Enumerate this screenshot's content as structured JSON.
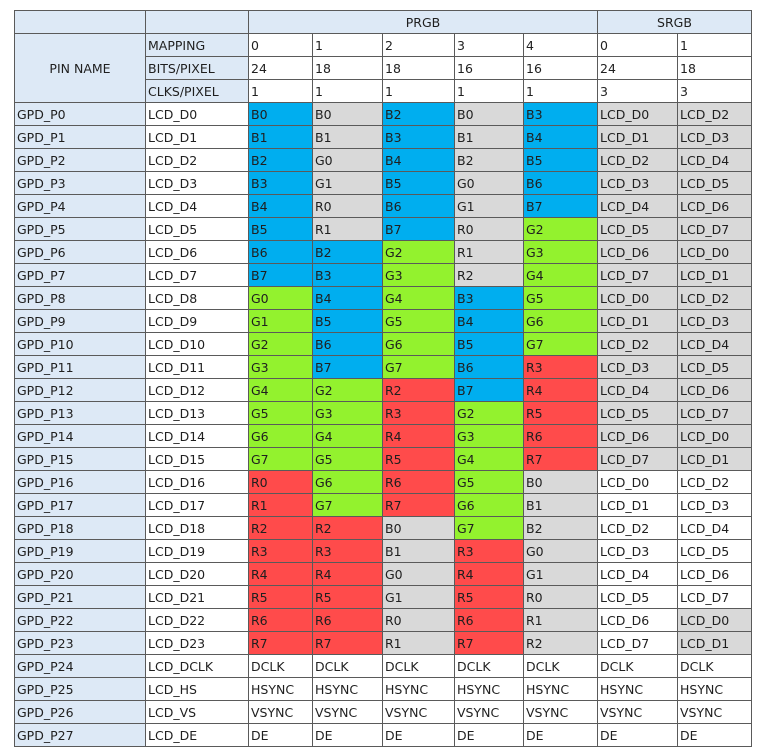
{
  "header": {
    "prgb": "PRGB",
    "srgb": "SRGB",
    "pin_name": "PIN NAME",
    "rows": [
      {
        "label": "MAPPING",
        "values": [
          "0",
          "1",
          "2",
          "3",
          "4",
          "0",
          "1"
        ]
      },
      {
        "label": "BITS/PIXEL",
        "values": [
          "24",
          "18",
          "18",
          "16",
          "16",
          "24",
          "18"
        ]
      },
      {
        "label": "CLKS/PIXEL",
        "values": [
          "1",
          "1",
          "1",
          "1",
          "1",
          "3",
          "3"
        ]
      }
    ]
  },
  "colors": {
    "header_bg": "#dde9f6",
    "blue": "#00aeef",
    "green": "#93f22e",
    "red": "#ff4b4b",
    "gray": "#d9d9d9",
    "white": "#ffffff",
    "border": "#5a5a5a"
  },
  "rows": [
    {
      "pin": "GPD_P0",
      "lcd": "LCD_D0",
      "cells": [
        "B0",
        "B0",
        "B2",
        "B0",
        "B3",
        "LCD_D0",
        "LCD_D2"
      ],
      "colors": [
        "B",
        "gray",
        "B",
        "gray",
        "B",
        "gray",
        "gray"
      ]
    },
    {
      "pin": "GPD_P1",
      "lcd": "LCD_D1",
      "cells": [
        "B1",
        "B1",
        "B3",
        "B1",
        "B4",
        "LCD_D1",
        "LCD_D3"
      ],
      "colors": [
        "B",
        "gray",
        "B",
        "gray",
        "B",
        "gray",
        "gray"
      ]
    },
    {
      "pin": "GPD_P2",
      "lcd": "LCD_D2",
      "cells": [
        "B2",
        "G0",
        "B4",
        "B2",
        "B5",
        "LCD_D2",
        "LCD_D4"
      ],
      "colors": [
        "B",
        "gray",
        "B",
        "gray",
        "B",
        "gray",
        "gray"
      ]
    },
    {
      "pin": "GPD_P3",
      "lcd": "LCD_D3",
      "cells": [
        "B3",
        "G1",
        "B5",
        "G0",
        "B6",
        "LCD_D3",
        "LCD_D5"
      ],
      "colors": [
        "B",
        "gray",
        "B",
        "gray",
        "B",
        "gray",
        "gray"
      ]
    },
    {
      "pin": "GPD_P4",
      "lcd": "LCD_D4",
      "cells": [
        "B4",
        "R0",
        "B6",
        "G1",
        "B7",
        "LCD_D4",
        "LCD_D6"
      ],
      "colors": [
        "B",
        "gray",
        "B",
        "gray",
        "B",
        "gray",
        "gray"
      ]
    },
    {
      "pin": "GPD_P5",
      "lcd": "LCD_D5",
      "cells": [
        "B5",
        "R1",
        "B7",
        "R0",
        "G2",
        "LCD_D5",
        "LCD_D7"
      ],
      "colors": [
        "B",
        "gray",
        "B",
        "gray",
        "G",
        "gray",
        "gray"
      ]
    },
    {
      "pin": "GPD_P6",
      "lcd": "LCD_D6",
      "cells": [
        "B6",
        "B2",
        "G2",
        "R1",
        "G3",
        "LCD_D6",
        "LCD_D0"
      ],
      "colors": [
        "B",
        "B",
        "G",
        "gray",
        "G",
        "gray",
        "gray"
      ]
    },
    {
      "pin": "GPD_P7",
      "lcd": "LCD_D7",
      "cells": [
        "B7",
        "B3",
        "G3",
        "R2",
        "G4",
        "LCD_D7",
        "LCD_D1"
      ],
      "colors": [
        "B",
        "B",
        "G",
        "gray",
        "G",
        "gray",
        "gray"
      ]
    },
    {
      "pin": "GPD_P8",
      "lcd": "LCD_D8",
      "cells": [
        "G0",
        "B4",
        "G4",
        "B3",
        "G5",
        "LCD_D0",
        "LCD_D2"
      ],
      "colors": [
        "G",
        "B",
        "G",
        "B",
        "G",
        "gray",
        "gray"
      ]
    },
    {
      "pin": "GPD_P9",
      "lcd": "LCD_D9",
      "cells": [
        "G1",
        "B5",
        "G5",
        "B4",
        "G6",
        "LCD_D1",
        "LCD_D3"
      ],
      "colors": [
        "G",
        "B",
        "G",
        "B",
        "G",
        "gray",
        "gray"
      ]
    },
    {
      "pin": "GPD_P10",
      "lcd": "LCD_D10",
      "cells": [
        "G2",
        "B6",
        "G6",
        "B5",
        "G7",
        "LCD_D2",
        "LCD_D4"
      ],
      "colors": [
        "G",
        "B",
        "G",
        "B",
        "G",
        "gray",
        "gray"
      ]
    },
    {
      "pin": "GPD_P11",
      "lcd": "LCD_D11",
      "cells": [
        "G3",
        "B7",
        "G7",
        "B6",
        "R3",
        "LCD_D3",
        "LCD_D5"
      ],
      "colors": [
        "G",
        "B",
        "G",
        "B",
        "R",
        "gray",
        "gray"
      ]
    },
    {
      "pin": "GPD_P12",
      "lcd": "LCD_D12",
      "cells": [
        "G4",
        "G2",
        "R2",
        "B7",
        "R4",
        "LCD_D4",
        "LCD_D6"
      ],
      "colors": [
        "G",
        "G",
        "R",
        "B",
        "R",
        "gray",
        "gray"
      ]
    },
    {
      "pin": "GPD_P13",
      "lcd": "LCD_D13",
      "cells": [
        "G5",
        "G3",
        "R3",
        "G2",
        "R5",
        "LCD_D5",
        "LCD_D7"
      ],
      "colors": [
        "G",
        "G",
        "R",
        "G",
        "R",
        "gray",
        "gray"
      ]
    },
    {
      "pin": "GPD_P14",
      "lcd": "LCD_D14",
      "cells": [
        "G6",
        "G4",
        "R4",
        "G3",
        "R6",
        "LCD_D6",
        "LCD_D0"
      ],
      "colors": [
        "G",
        "G",
        "R",
        "G",
        "R",
        "gray",
        "gray"
      ]
    },
    {
      "pin": "GPD_P15",
      "lcd": "LCD_D15",
      "cells": [
        "G7",
        "G5",
        "R5",
        "G4",
        "R7",
        "LCD_D7",
        "LCD_D1"
      ],
      "colors": [
        "G",
        "G",
        "R",
        "G",
        "R",
        "gray",
        "gray"
      ]
    },
    {
      "pin": "GPD_P16",
      "lcd": "LCD_D16",
      "cells": [
        "R0",
        "G6",
        "R6",
        "G5",
        "B0",
        "LCD_D0",
        "LCD_D2"
      ],
      "colors": [
        "R",
        "G",
        "R",
        "G",
        "gray",
        "white",
        "white"
      ]
    },
    {
      "pin": "GPD_P17",
      "lcd": "LCD_D17",
      "cells": [
        "R1",
        "G7",
        "R7",
        "G6",
        "B1",
        "LCD_D1",
        "LCD_D3"
      ],
      "colors": [
        "R",
        "G",
        "R",
        "G",
        "gray",
        "white",
        "white"
      ]
    },
    {
      "pin": "GPD_P18",
      "lcd": "LCD_D18",
      "cells": [
        "R2",
        "R2",
        "B0",
        "G7",
        "B2",
        "LCD_D2",
        "LCD_D4"
      ],
      "colors": [
        "R",
        "R",
        "gray",
        "G",
        "gray",
        "white",
        "white"
      ]
    },
    {
      "pin": "GPD_P19",
      "lcd": "LCD_D19",
      "cells": [
        "R3",
        "R3",
        "B1",
        "R3",
        "G0",
        "LCD_D3",
        "LCD_D5"
      ],
      "colors": [
        "R",
        "R",
        "gray",
        "R",
        "gray",
        "white",
        "white"
      ]
    },
    {
      "pin": "GPD_P20",
      "lcd": "LCD_D20",
      "cells": [
        "R4",
        "R4",
        "G0",
        "R4",
        "G1",
        "LCD_D4",
        "LCD_D6"
      ],
      "colors": [
        "R",
        "R",
        "gray",
        "R",
        "gray",
        "white",
        "white"
      ]
    },
    {
      "pin": "GPD_P21",
      "lcd": "LCD_D21",
      "cells": [
        "R5",
        "R5",
        "G1",
        "R5",
        "R0",
        "LCD_D5",
        "LCD_D7"
      ],
      "colors": [
        "R",
        "R",
        "gray",
        "R",
        "gray",
        "white",
        "white"
      ]
    },
    {
      "pin": "GPD_P22",
      "lcd": "LCD_D22",
      "cells": [
        "R6",
        "R6",
        "R0",
        "R6",
        "R1",
        "LCD_D6",
        "LCD_D0"
      ],
      "colors": [
        "R",
        "R",
        "gray",
        "R",
        "gray",
        "white",
        "gray"
      ]
    },
    {
      "pin": "GPD_P23",
      "lcd": "LCD_D23",
      "cells": [
        "R7",
        "R7",
        "R1",
        "R7",
        "R2",
        "LCD_D7",
        "LCD_D1"
      ],
      "colors": [
        "R",
        "R",
        "gray",
        "R",
        "gray",
        "white",
        "gray"
      ]
    },
    {
      "pin": "GPD_P24",
      "lcd": "LCD_DCLK",
      "cells": [
        "DCLK",
        "DCLK",
        "DCLK",
        "DCLK",
        "DCLK",
        "DCLK",
        "DCLK"
      ],
      "colors": [
        "white",
        "white",
        "white",
        "white",
        "white",
        "white",
        "white"
      ]
    },
    {
      "pin": "GPD_P25",
      "lcd": "LCD_HS",
      "cells": [
        "HSYNC",
        "HSYNC",
        "HSYNC",
        "HSYNC",
        "HSYNC",
        "HSYNC",
        "HSYNC"
      ],
      "colors": [
        "white",
        "white",
        "white",
        "white",
        "white",
        "white",
        "white"
      ]
    },
    {
      "pin": "GPD_P26",
      "lcd": "LCD_VS",
      "cells": [
        "VSYNC",
        "VSYNC",
        "VSYNC",
        "VSYNC",
        "VSYNC",
        "VSYNC",
        "VSYNC"
      ],
      "colors": [
        "white",
        "white",
        "white",
        "white",
        "white",
        "white",
        "white"
      ]
    },
    {
      "pin": "GPD_P27",
      "lcd": "LCD_DE",
      "cells": [
        "DE",
        "DE",
        "DE",
        "DE",
        "DE",
        "DE",
        "DE"
      ],
      "colors": [
        "white",
        "white",
        "white",
        "white",
        "white",
        "white",
        "white"
      ]
    }
  ]
}
